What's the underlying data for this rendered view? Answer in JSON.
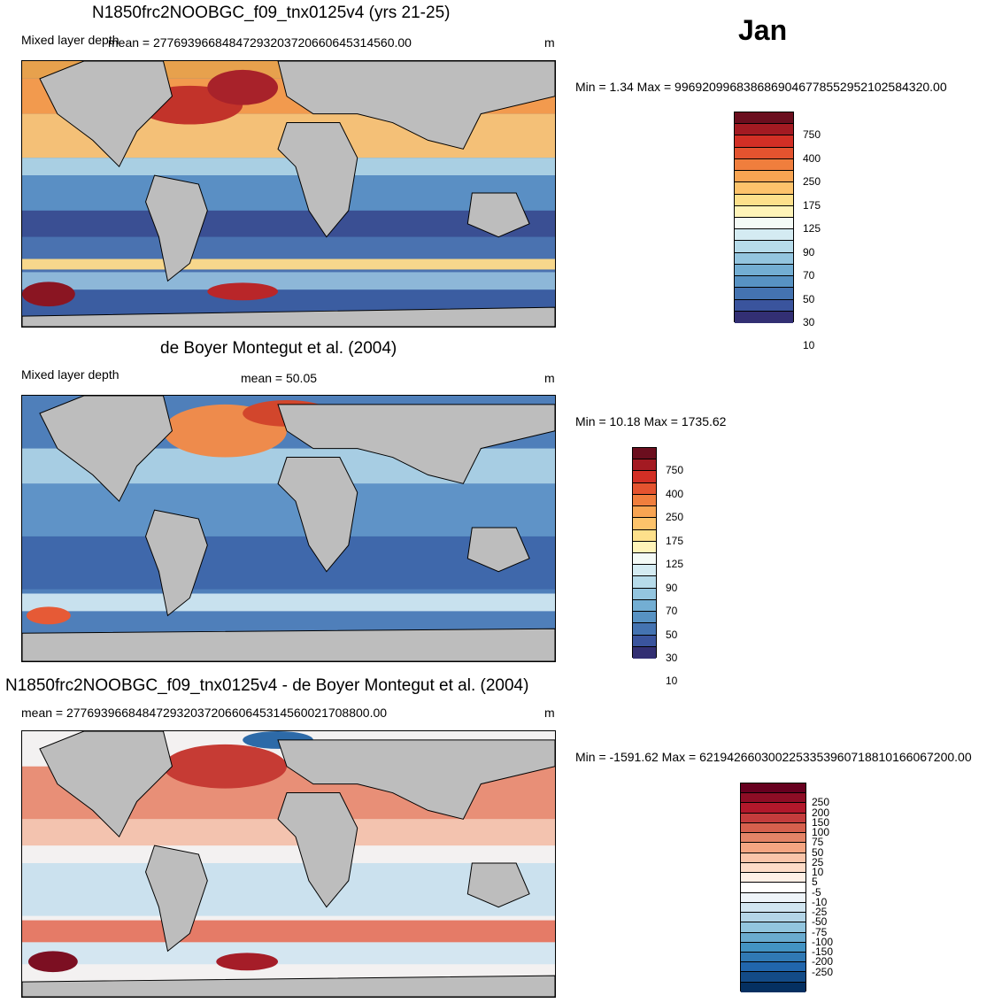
{
  "header": {
    "month": "Jan"
  },
  "panels": [
    {
      "title": "N1850frc2NOOBGC_f09_tnx0125v4 (yrs 21-25)",
      "left_label": "Mixed layer depth",
      "mean_label": "mean = 27769396684847293203720660645314560.00",
      "units": "m",
      "minmax": "Min =   1.34 Max = 996920996838686904677855295210258432 0.00",
      "colorbar": {
        "colors": [
          "#6b0e1e",
          "#a31a22",
          "#d22f25",
          "#e4532f",
          "#f07e3d",
          "#f8a452",
          "#fdc36b",
          "#fde08b",
          "#fff3b8",
          "#f4faf6",
          "#d4ebf2",
          "#b6dbea",
          "#93c5df",
          "#73aed3",
          "#5792c3",
          "#4473b1",
          "#3a549d",
          "#322f73"
        ],
        "labels": [
          "750",
          "400",
          "250",
          "175",
          "125",
          "90",
          "70",
          "50",
          "30",
          "10"
        ]
      }
    },
    {
      "title": "de Boyer Montegut et al. (2004)",
      "left_label": "Mixed layer depth",
      "mean_label": "mean =  50.05",
      "units": "m",
      "minmax": "Min =  10.18 Max = 1735.62",
      "colorbar": {
        "colors": [
          "#6b0e1e",
          "#a31a22",
          "#d22f25",
          "#e4532f",
          "#f07e3d",
          "#f8a452",
          "#fdc36b",
          "#fde08b",
          "#fff3b8",
          "#f4faf6",
          "#d4ebf2",
          "#b6dbea",
          "#93c5df",
          "#73aed3",
          "#5792c3",
          "#4473b1",
          "#3a549d",
          "#322f73"
        ],
        "labels": [
          "750",
          "400",
          "250",
          "175",
          "125",
          "90",
          "70",
          "50",
          "30",
          "10"
        ]
      }
    },
    {
      "title": "N1850frc2NOOBGC_f09_tnx0125v4 - de Boyer Montegut et al. (2004)",
      "left_label": "",
      "mean_label": "mean = 27769396684847293203720660645314560021708800.00",
      "units": "m",
      "minmax": "Min = -1591.62 Max = 6219426603002253353960718810166067200.00",
      "colorbar": {
        "colors": [
          "#67001f",
          "#8e0d25",
          "#b2182b",
          "#c43c3c",
          "#d6604d",
          "#e48467",
          "#f4a582",
          "#f9c4a9",
          "#fddbc7",
          "#fff0e6",
          "#ffffff",
          "#eef4f9",
          "#d1e5f0",
          "#b4d5e7",
          "#92c5de",
          "#6aabcf",
          "#4393c3",
          "#3079b4",
          "#2166ac",
          "#134b87",
          "#053061"
        ],
        "labels": [
          "250",
          "200",
          "150",
          "100",
          "75",
          "50",
          "25",
          "10",
          "5",
          "-5",
          "-10",
          "-25",
          "-50",
          "-75",
          "-100",
          "-150",
          "-200",
          "-250"
        ]
      }
    }
  ]
}
